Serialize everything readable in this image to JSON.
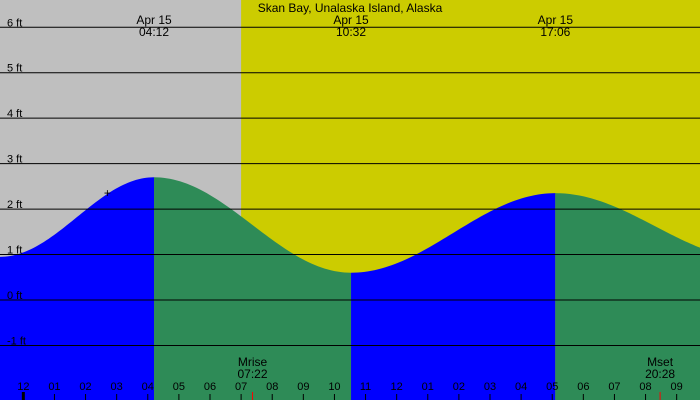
{
  "title": "Skan Bay, Unalaska Island, Alaska",
  "colors": {
    "night": "#bfbfbf",
    "day": "#cccc00",
    "rising": "#0000ff",
    "falling": "#2e8b57",
    "grid": "#000000",
    "moon_marker": "#ff0000"
  },
  "chart_data": {
    "type": "area",
    "title": "Skan Bay, Unalaska Island, Alaska",
    "x_unit": "hour of day (Apr 15)",
    "y_unit": "ft",
    "xlim": [
      -0.75,
      21.75
    ],
    "ylim": [
      -2.2,
      6.6
    ],
    "daylight": {
      "start_hour": 7.0,
      "end_hour": 24.0
    },
    "y_ticks": [
      {
        "value": 6,
        "label": "6 ft"
      },
      {
        "value": 5,
        "label": "5 ft"
      },
      {
        "value": 4,
        "label": "4 ft"
      },
      {
        "value": 3,
        "label": "3 ft"
      },
      {
        "value": 2,
        "label": "2 ft"
      },
      {
        "value": 1,
        "label": "1 ft"
      },
      {
        "value": 0,
        "label": "0 ft"
      },
      {
        "value": -1,
        "label": "-1 ft"
      }
    ],
    "x_ticks": [
      {
        "hour": -1,
        "label": "11"
      },
      {
        "hour": 0,
        "label": "12"
      },
      {
        "hour": 1,
        "label": "01"
      },
      {
        "hour": 2,
        "label": "02"
      },
      {
        "hour": 3,
        "label": "03"
      },
      {
        "hour": 4,
        "label": "04"
      },
      {
        "hour": 5,
        "label": "05"
      },
      {
        "hour": 6,
        "label": "06"
      },
      {
        "hour": 7,
        "label": "07"
      },
      {
        "hour": 8,
        "label": "08"
      },
      {
        "hour": 9,
        "label": "09"
      },
      {
        "hour": 10,
        "label": "10"
      },
      {
        "hour": 11,
        "label": "11"
      },
      {
        "hour": 12,
        "label": "12"
      },
      {
        "hour": 13,
        "label": "01"
      },
      {
        "hour": 14,
        "label": "02"
      },
      {
        "hour": 15,
        "label": "03"
      },
      {
        "hour": 16,
        "label": "04"
      },
      {
        "hour": 17,
        "label": "05"
      },
      {
        "hour": 18,
        "label": "06"
      },
      {
        "hour": 19,
        "label": "07"
      },
      {
        "hour": 20,
        "label": "08"
      },
      {
        "hour": 21,
        "label": "09"
      }
    ],
    "extremes": [
      {
        "hour": 4.2,
        "height": 2.7,
        "type": "high",
        "date": "Apr 15",
        "time": "04:12"
      },
      {
        "hour": 10.533,
        "height": 0.6,
        "type": "low",
        "date": "Apr 15",
        "time": "10:32"
      },
      {
        "hour": 17.1,
        "height": 2.35,
        "type": "high",
        "date": "Apr 15",
        "time": "17:06"
      },
      {
        "hour": 23.5,
        "height": 0.9,
        "type": "low",
        "date": "Apr 15",
        "time": ""
      }
    ],
    "start_level": {
      "hour": -0.75,
      "height": 0.95
    },
    "events": [
      {
        "label": "Mrise",
        "time": "07:22",
        "hour": 7.367
      },
      {
        "label": "Mset",
        "time": "20:28",
        "hour": 20.467
      }
    ],
    "marker": {
      "hour": 2.7,
      "height": 2.35,
      "symbol": "+"
    }
  }
}
